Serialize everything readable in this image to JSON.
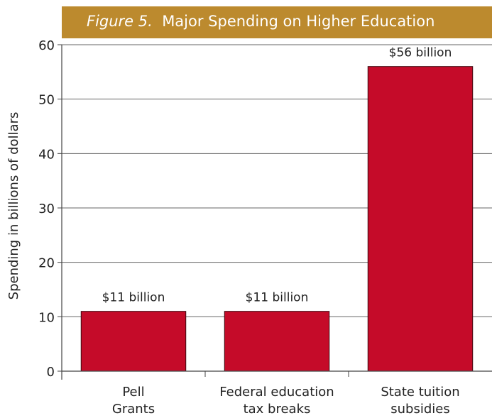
{
  "title": {
    "figure_label": "Figure 5.",
    "text": "Major Spending on Higher Education"
  },
  "chart_data": {
    "type": "bar",
    "title": "Major Spending on Higher Education",
    "xlabel": "",
    "ylabel": "Spending in billions of dollars",
    "ylim": [
      0,
      60
    ],
    "yticks": [
      0,
      10,
      20,
      30,
      40,
      50,
      60
    ],
    "grid": true,
    "categories": [
      [
        "Pell",
        "Grants"
      ],
      [
        "Federal education",
        "tax breaks"
      ],
      [
        "State tuition",
        "subsidies"
      ]
    ],
    "values": [
      11,
      11,
      56
    ],
    "data_labels": [
      "$11 billion",
      "$11 billion",
      "$56 billion"
    ],
    "colors": {
      "bar": "#c50b29",
      "bar_stroke": "#3a0a10",
      "grid": "#666666",
      "title_bg": "#bc8a2e"
    }
  }
}
